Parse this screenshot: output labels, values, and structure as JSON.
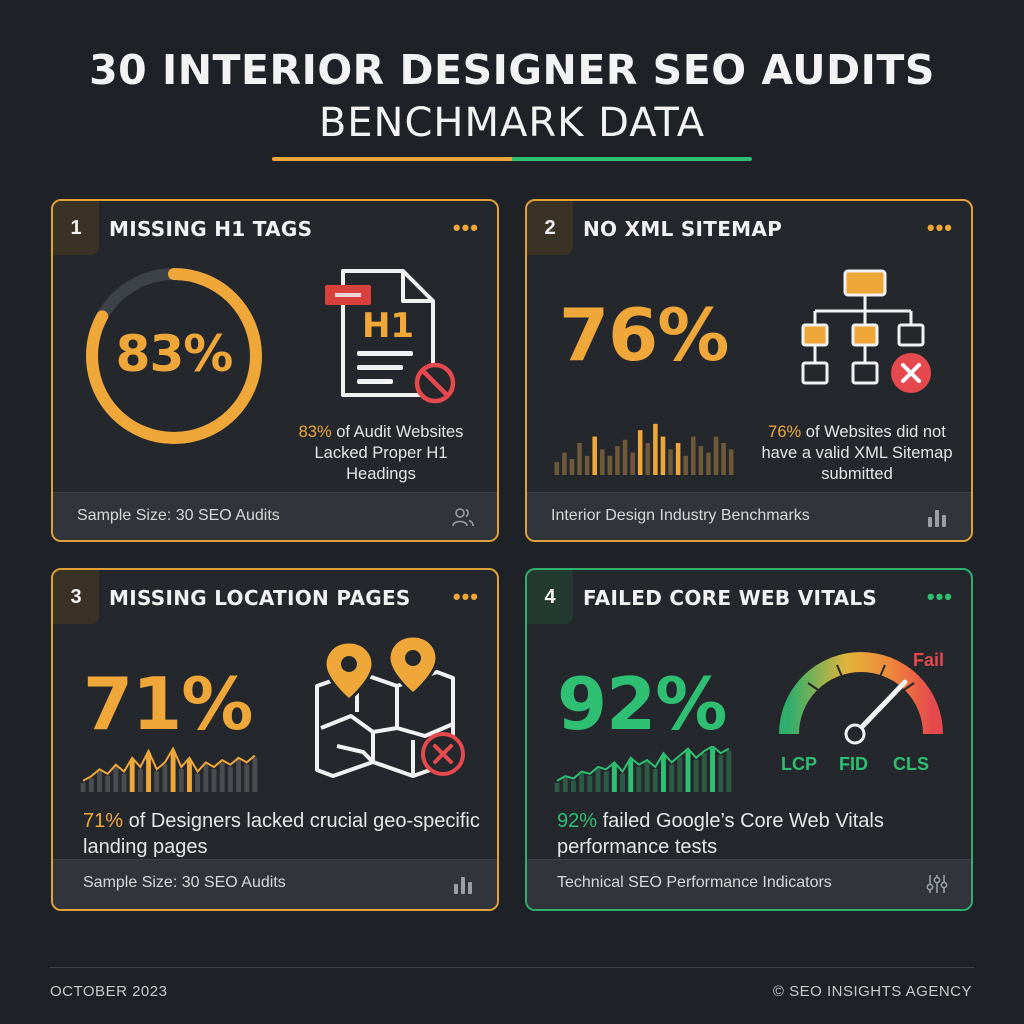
{
  "header": {
    "title": "30 INTERIOR DESIGNER SEO AUDITS",
    "subtitle": "BENCHMARK DATA"
  },
  "colors": {
    "background": "#1e2227",
    "accent_orange": "#f0a73a",
    "accent_green": "#2fbf73",
    "danger_red": "#e5484d"
  },
  "cards": [
    {
      "number": "1",
      "title": "MISSING H1 TAGS",
      "more_icon": "ellipsis-icon",
      "stat": "83%",
      "stat_fraction": 0.83,
      "caption_highlight": "83%",
      "caption_rest": " of Audit Websites Lacked Proper H1 Headings",
      "icon": "document-h1-prohibited-icon",
      "icon_text": "H1",
      "footer": "Sample Size: 30 SEO Audits",
      "footer_icon": "users-icon"
    },
    {
      "number": "2",
      "title": "NO XML SITEMAP",
      "more_icon": "ellipsis-icon",
      "stat": "76%",
      "caption_highlight": "76%",
      "caption_rest": " of Websites did not have a valid XML Sitemap submitted",
      "icon": "sitemap-error-icon",
      "footer": "Interior Design Industry Benchmarks",
      "footer_icon": "bar-chart-icon"
    },
    {
      "number": "3",
      "title": "MISSING LOCATION PAGES",
      "more_icon": "ellipsis-icon",
      "stat": "71%",
      "caption_highlight": "71%",
      "caption_rest": " of Designers lacked crucial geo-specific landing pages",
      "icon": "map-pins-error-icon",
      "footer": "Sample Size: 30 SEO Audits",
      "footer_icon": "bar-chart-icon"
    },
    {
      "number": "4",
      "title": "FAILED CORE WEB VITALS",
      "more_icon": "ellipsis-icon",
      "stat": "92%",
      "caption_highlight": "92%",
      "caption_rest": " failed Google’s Core Web Vitals performance tests",
      "icon": "speed-gauge-icon",
      "gauge_label": "Fail",
      "metrics": [
        "LCP",
        "FID",
        "CLS"
      ],
      "footer": "Technical SEO Performance Indicators",
      "footer_icon": "sliders-icon"
    }
  ],
  "footer": {
    "date": "OCTOBER 2023",
    "copyright": "© SEO INSIGHTS AGENCY"
  }
}
